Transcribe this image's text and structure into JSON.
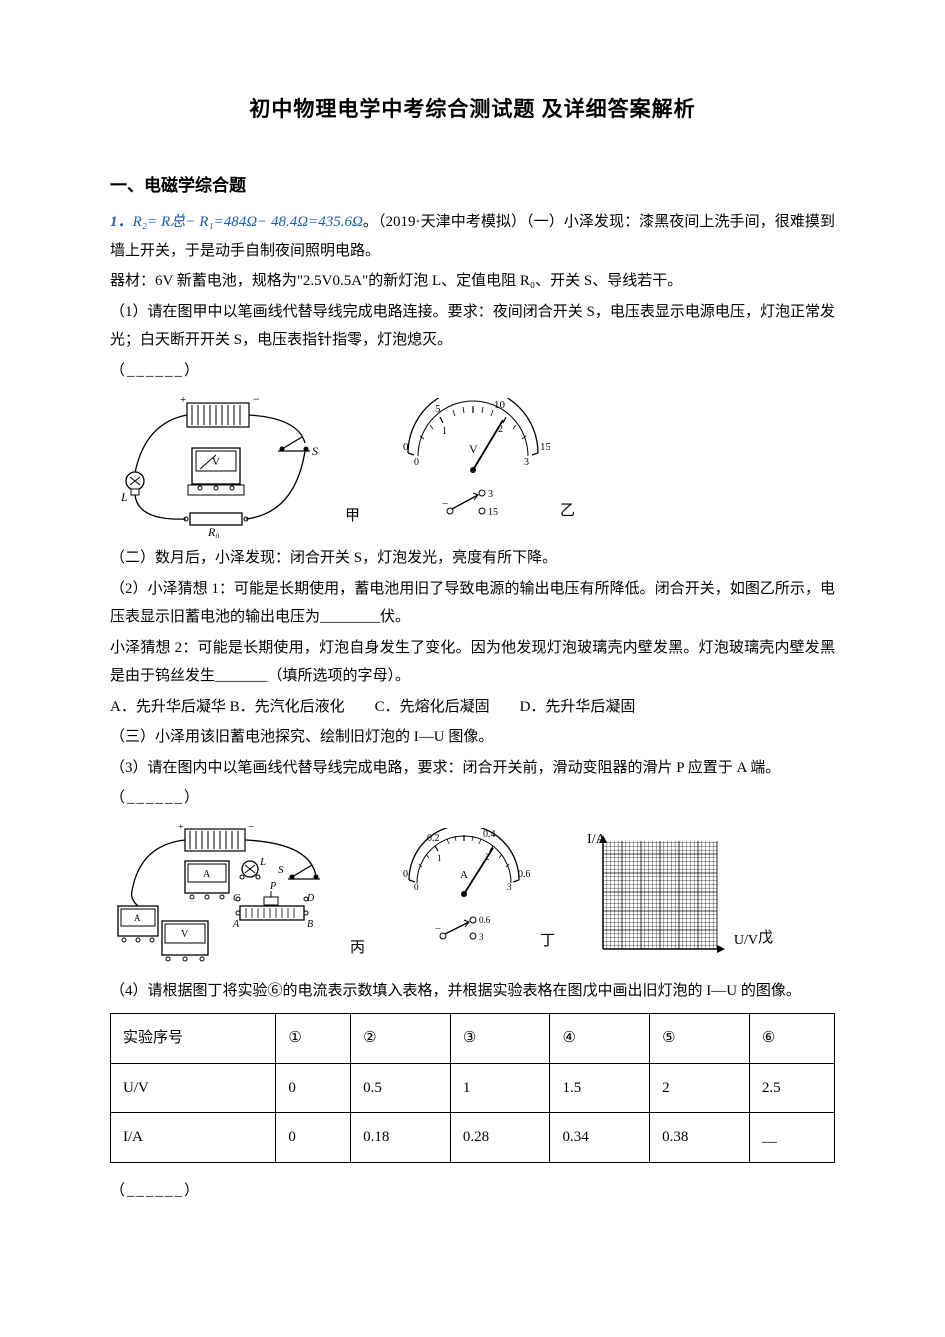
{
  "title": "初中物理电学中考综合测试题  及详细答案解析",
  "section_head": "一、电磁学综合题",
  "qnum": "1．",
  "formula": "R₂= R总− R₁=484Ω− 48.4Ω=435.6Ω",
  "context": "。（2019·天津中考模拟）（一）小泽发现：漆黑夜间上洗手间，很难摸到墙上开关，于是动手自制夜间照明电路。",
  "materials": "器材：6V 新蓄电池，规格为\"2.5V0.5A\"的新灯泡 L、定值电阻 R₀、开关 S、导线若干。",
  "q1": "（1）请在图甲中以笔画线代替导线完成电路连接。要求：夜间闭合开关  S，电压表显示电源电压，灯泡正常发光；白天断开开关 S，电压表指针指零，灯泡熄灭。",
  "blank": "（______）",
  "part2a": "（二）数月后，小泽发现：闭合开关 S，灯泡发光，亮度有所下降。",
  "q2a": "（2）小泽猜想 1：可能是长期使用，蓄电池用旧了导致电源的输出电压有所降低。闭合开关，如图乙所示，电压表显示旧蓄电池的输出电压为________伏。",
  "q2b": "小泽猜想 2：可能是长期使用，灯泡自身发生了变化。因为他发现灯泡玻璃壳内壁发黑。灯泡玻璃壳内壁发黑是由于钨丝发生_______（填所选项的字母）。",
  "options": "A．先升华后凝华 B．先汽化后液化　　C．先熔化后凝固　　D．先升华后凝固",
  "part3a": "（三）小泽用该旧蓄电池探究、绘制旧灯泡的 I—U 图像。",
  "q3": "（3）请在图内中以笔画线代替导线完成电路，要求：闭合开关前，滑动变阻器的滑片  P 应置于 A 端。",
  "q4": "（4）请根据图丁将实验⑥的电流表示数填入表格，并根据实验表格在图戊中画出旧灯泡的 I—U 的图像。",
  "fig_labels": {
    "jia": "甲",
    "yi": "乙",
    "bing": "丙",
    "ding": "丁",
    "wu": "戊"
  },
  "fig2_axis_y": "I/A",
  "fig2_axis_x": "U/V",
  "meter1": {
    "ticks": [
      "0",
      "5",
      "10",
      "15",
      "0",
      "1",
      "2",
      "3"
    ],
    "unit": "V",
    "selector": [
      "3",
      "15"
    ]
  },
  "meter2": {
    "ticks": [
      "0",
      "0.2",
      "0.4",
      "0.6",
      "0",
      "1",
      "2",
      "3"
    ],
    "unit": "A",
    "selector": [
      "0.6",
      "3"
    ]
  },
  "table": {
    "headers": [
      "实验序号",
      "①",
      "②",
      "③",
      "④",
      "⑤",
      "⑥"
    ],
    "row_uv": [
      "U/V",
      "0",
      "0.5",
      "1",
      "1.5",
      "2",
      "2.5"
    ],
    "row_ia": [
      "I/A",
      "0",
      "0.18",
      "0.28",
      "0.34",
      "0.38",
      "__"
    ]
  },
  "colors": {
    "ink": "#000000",
    "blue": "#1a5fb4",
    "paper": "#ffffff",
    "grid": "#000000"
  }
}
